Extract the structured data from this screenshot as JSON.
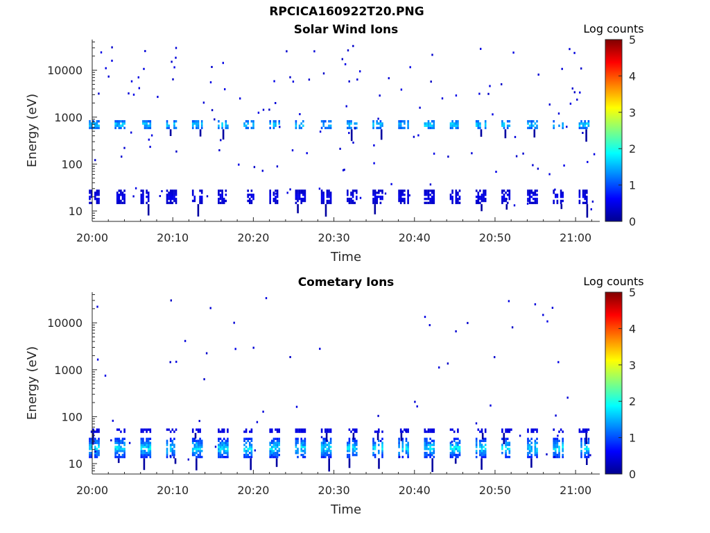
{
  "figure": {
    "title": "RPCICA160922T20.PNG"
  },
  "colorscale": {
    "stops": [
      "#00008f",
      "#0000ff",
      "#0080ff",
      "#00ffff",
      "#80ff80",
      "#ffff00",
      "#ff8000",
      "#ff0000",
      "#800000"
    ]
  },
  "chart_data": [
    {
      "type": "heatmap",
      "title": "Solar Wind Ions",
      "xlabel": "Time",
      "ylabel": "Energy (eV)",
      "colorbar_label": "Log counts",
      "xlim": [
        "20:00",
        "21:03"
      ],
      "x_ticks": [
        "20:00",
        "20:10",
        "20:20",
        "20:30",
        "20:40",
        "20:50",
        "21:00"
      ],
      "ylim": [
        6,
        45000
      ],
      "y_scale": "log",
      "y_ticks": [
        10,
        100,
        1000,
        10000
      ],
      "y_tick_labels": [
        "10",
        "100",
        "1000",
        "10000"
      ],
      "clim": [
        0,
        5
      ],
      "c_ticks": [
        "0",
        "1",
        "2",
        "3",
        "4",
        "5"
      ],
      "cycle_minutes": 3.2,
      "bands": [
        {
          "name": "solar wind peak",
          "energy_eV": [
            550,
            850
          ],
          "log_counts": [
            0.6,
            2.0
          ]
        },
        {
          "name": "low-energy band",
          "energy_eV": [
            14,
            28
          ],
          "log_counts": [
            0.2,
            0.6
          ]
        }
      ]
    },
    {
      "type": "heatmap",
      "title": "Cometary Ions",
      "xlabel": "Time",
      "ylabel": "Energy (eV)",
      "colorbar_label": "Log counts",
      "xlim": [
        "20:00",
        "21:03"
      ],
      "x_ticks": [
        "20:00",
        "20:10",
        "20:20",
        "20:30",
        "20:40",
        "20:50",
        "21:00"
      ],
      "ylim": [
        6,
        45000
      ],
      "y_scale": "log",
      "y_ticks": [
        10,
        100,
        1000,
        10000
      ],
      "y_tick_labels": [
        "10",
        "100",
        "1000",
        "10000"
      ],
      "clim": [
        0,
        5
      ],
      "c_ticks": [
        "0",
        "1",
        "2",
        "3",
        "4",
        "5"
      ],
      "cycle_minutes": 3.2,
      "bands": [
        {
          "name": "cometary ion band",
          "energy_eV": [
            13,
            35
          ],
          "log_counts": [
            0.3,
            2.1
          ]
        },
        {
          "name": "upper fringe",
          "energy_eV": [
            45,
            55
          ],
          "log_counts": [
            0.3,
            0.6
          ]
        }
      ]
    }
  ]
}
